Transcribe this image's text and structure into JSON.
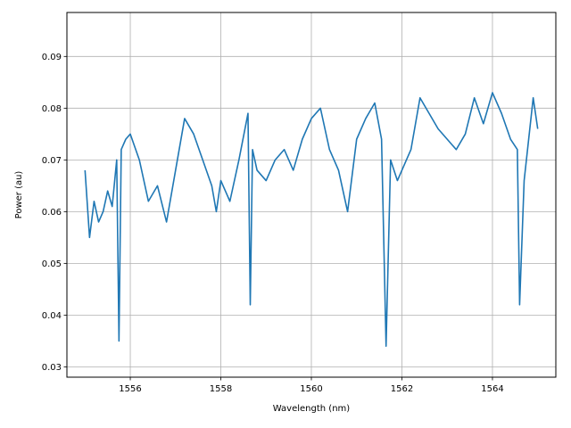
{
  "chart_data": {
    "type": "line",
    "title": "",
    "xlabel": "Wavelength (nm)",
    "ylabel": "Power (au)",
    "xlim": [
      1554.6,
      1565.4
    ],
    "ylim": [
      0.028,
      0.0985
    ],
    "grid": true,
    "color": "#1f77b4",
    "xticks": [
      1556,
      1558,
      1560,
      1562,
      1564
    ],
    "yticks": [
      0.03,
      0.04,
      0.05,
      0.06,
      0.07,
      0.08,
      0.09
    ],
    "xtick_labels": [
      "1556",
      "1558",
      "1560",
      "1562",
      "1564"
    ],
    "ytick_labels": [
      "0.03",
      "0.04",
      "0.05",
      "0.06",
      "0.07",
      "0.08",
      "0.09"
    ],
    "series": [
      {
        "x": [
          1555.0,
          1555.1,
          1555.2,
          1555.3,
          1555.4,
          1555.5,
          1555.6,
          1555.7,
          1555.75,
          1555.8,
          1555.9,
          1556.0,
          1556.2,
          1556.4,
          1556.6,
          1556.8,
          1557.0,
          1557.2,
          1557.4,
          1557.6,
          1557.8,
          1557.9,
          1558.0,
          1558.2,
          1558.4,
          1558.6,
          1558.65,
          1558.7,
          1558.8,
          1559.0,
          1559.2,
          1559.4,
          1559.6,
          1559.8,
          1560.0,
          1560.2,
          1560.4,
          1560.6,
          1560.8,
          1561.0,
          1561.2,
          1561.4,
          1561.55,
          1561.65,
          1561.75,
          1561.9,
          1562.0,
          1562.2,
          1562.4,
          1562.6,
          1562.8,
          1563.0,
          1563.2,
          1563.4,
          1563.6,
          1563.8,
          1564.0,
          1564.2,
          1564.4,
          1564.55,
          1564.6,
          1564.7,
          1564.8,
          1564.9,
          1565.0
        ],
        "y": [
          0.068,
          0.055,
          0.062,
          0.058,
          0.06,
          0.064,
          0.061,
          0.07,
          0.035,
          0.072,
          0.074,
          0.075,
          0.07,
          0.062,
          0.065,
          0.058,
          0.068,
          0.078,
          0.075,
          0.07,
          0.065,
          0.06,
          0.066,
          0.062,
          0.07,
          0.079,
          0.042,
          0.072,
          0.068,
          0.066,
          0.07,
          0.072,
          0.068,
          0.074,
          0.078,
          0.08,
          0.072,
          0.068,
          0.06,
          0.074,
          0.078,
          0.081,
          0.074,
          0.034,
          0.07,
          0.066,
          0.068,
          0.072,
          0.082,
          0.079,
          0.076,
          0.074,
          0.072,
          0.075,
          0.082,
          0.077,
          0.083,
          0.079,
          0.074,
          0.072,
          0.042,
          0.066,
          0.074,
          0.082,
          0.076
        ]
      }
    ]
  }
}
